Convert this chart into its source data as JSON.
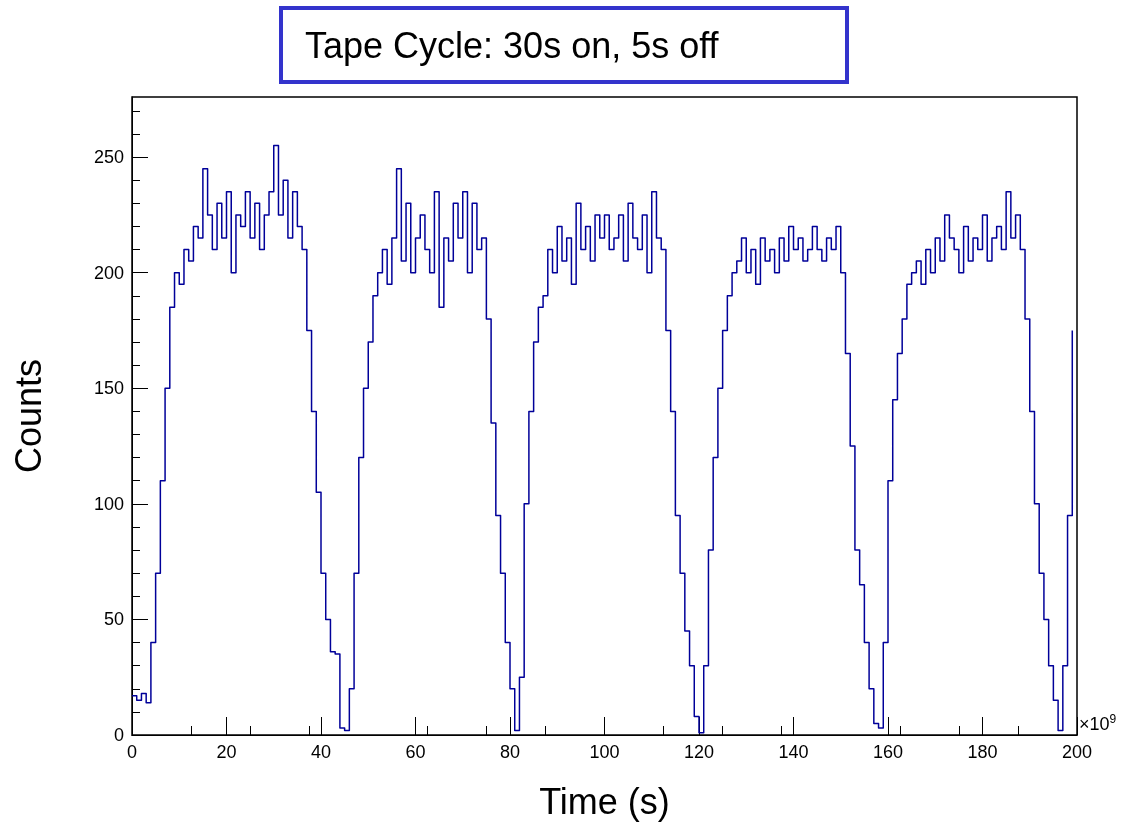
{
  "chart_data": {
    "type": "step",
    "title": "Tape Cycle: 30s on, 5s off",
    "xlabel": "Time (s)",
    "ylabel": "Counts",
    "annotations": [
      "×10$^{9}$"
    ],
    "x": [
      0,
      1,
      2,
      3,
      4,
      5,
      6,
      7,
      8,
      9,
      10,
      11,
      12,
      13,
      14,
      15,
      16,
      17,
      18,
      19,
      20,
      21,
      22,
      23,
      24,
      25,
      26,
      27,
      28,
      29,
      30,
      31,
      32,
      33,
      34,
      35,
      36,
      37,
      38,
      39,
      40,
      41,
      42,
      43,
      44,
      45,
      46,
      47,
      48,
      49,
      50,
      51,
      52,
      53,
      54,
      55,
      56,
      57,
      58,
      59,
      60,
      61,
      62,
      63,
      64,
      65,
      66,
      67,
      68,
      69,
      70,
      71,
      72,
      73,
      74,
      75,
      76,
      77,
      78,
      79,
      80,
      81,
      82,
      83,
      84,
      85,
      86,
      87,
      88,
      89,
      90,
      91,
      92,
      93,
      94,
      95,
      96,
      97,
      98,
      99,
      100,
      101,
      102,
      103,
      104,
      105,
      106,
      107,
      108,
      109,
      110,
      111,
      112,
      113,
      114,
      115,
      116,
      117,
      118,
      119,
      120,
      121,
      122,
      123,
      124,
      125,
      126,
      127,
      128,
      129,
      130,
      131,
      132,
      133,
      134,
      135,
      136,
      137,
      138,
      139,
      140,
      141,
      142,
      143,
      144,
      145,
      146,
      147,
      148,
      149,
      150,
      151,
      152,
      153,
      154,
      155,
      156,
      157,
      158,
      159,
      160,
      161,
      162,
      163,
      164,
      165,
      166,
      167,
      168,
      169,
      170,
      171,
      172,
      173,
      174,
      175,
      176,
      177,
      178,
      179,
      180,
      181,
      182,
      183,
      184,
      185,
      186,
      187,
      188,
      189,
      190,
      191,
      192,
      193,
      194,
      195,
      196,
      197,
      198,
      199
    ],
    "series": [
      {
        "color": "#000099",
        "values": [
          17,
          15,
          18,
          14,
          40,
          70,
          110,
          150,
          185,
          200,
          195,
          210,
          205,
          220,
          215,
          245,
          225,
          210,
          230,
          215,
          235,
          200,
          225,
          220,
          235,
          215,
          230,
          210,
          225,
          235,
          255,
          225,
          240,
          215,
          235,
          220,
          210,
          175,
          140,
          105,
          70,
          50,
          36,
          35,
          3,
          2,
          20,
          70,
          120,
          150,
          170,
          190,
          200,
          210,
          195,
          215,
          245,
          205,
          230,
          200,
          215,
          225,
          210,
          200,
          235,
          185,
          215,
          205,
          230,
          215,
          235,
          200,
          230,
          210,
          215,
          180,
          135,
          95,
          70,
          40,
          20,
          2,
          25,
          100,
          140,
          170,
          185,
          190,
          210,
          200,
          220,
          205,
          215,
          195,
          230,
          210,
          220,
          205,
          225,
          215,
          225,
          210,
          215,
          225,
          205,
          230,
          215,
          210,
          225,
          200,
          235,
          215,
          210,
          175,
          140,
          95,
          70,
          45,
          30,
          8,
          1,
          30,
          80,
          120,
          150,
          175,
          190,
          200,
          205,
          215,
          200,
          210,
          195,
          215,
          205,
          210,
          200,
          215,
          205,
          220,
          210,
          215,
          205,
          210,
          220,
          210,
          205,
          215,
          210,
          220,
          200,
          165,
          125,
          80,
          65,
          40,
          20,
          5,
          3,
          40,
          110,
          145,
          165,
          180,
          195,
          200,
          205,
          195,
          210,
          200,
          215,
          205,
          225,
          215,
          210,
          200,
          220,
          205,
          215,
          210,
          225,
          205,
          215,
          220,
          210,
          235,
          215,
          225,
          210,
          180,
          140,
          100,
          70,
          50,
          30,
          15,
          2,
          30,
          95,
          175
        ]
      }
    ],
    "xlim": [
      0,
      200
    ],
    "xticks": [
      0,
      20,
      40,
      60,
      80,
      100,
      120,
      140,
      160,
      180,
      200
    ],
    "ylim": [
      0,
      276
    ],
    "yticks": [
      0,
      50,
      100,
      150,
      200,
      250
    ],
    "marker": "none",
    "line_style": "solid"
  }
}
